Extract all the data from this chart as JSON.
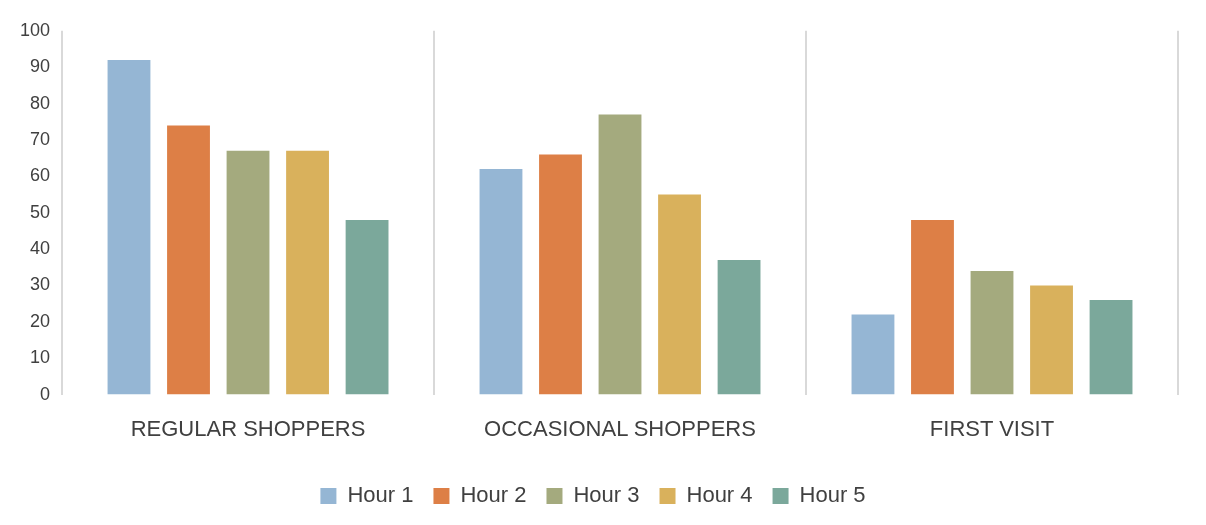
{
  "chart_data": {
    "type": "bar",
    "categories": [
      "REGULAR SHOPPERS",
      "OCCASIONAL SHOPPERS",
      "FIRST VISIT"
    ],
    "series": [
      {
        "name": "Hour 1",
        "color": "#95b6d4",
        "values": [
          92,
          62,
          22
        ]
      },
      {
        "name": "Hour 2",
        "color": "#dd7f46",
        "values": [
          74,
          66,
          48
        ]
      },
      {
        "name": "Hour 3",
        "color": "#a4aa7e",
        "values": [
          67,
          77,
          34
        ]
      },
      {
        "name": "Hour 4",
        "color": "#d9b15c",
        "values": [
          67,
          55,
          30
        ]
      },
      {
        "name": "Hour 5",
        "color": "#7ba89b",
        "values": [
          48,
          37,
          26
        ]
      }
    ],
    "ylim": [
      0,
      100
    ],
    "yticks": [
      0,
      10,
      20,
      30,
      40,
      50,
      60,
      70,
      80,
      90,
      100
    ],
    "grid": "x",
    "legend": "bottom"
  }
}
